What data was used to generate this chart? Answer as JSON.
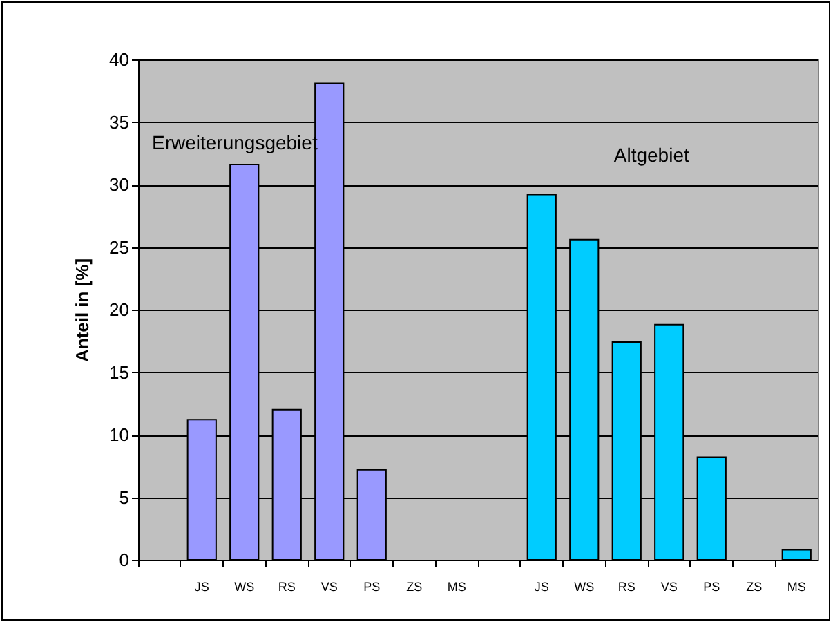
{
  "chart_data": {
    "type": "bar",
    "ylabel": "Anteil in [%]",
    "categories": [
      null,
      "JS",
      "WS",
      "RS",
      "VS",
      "PS",
      "ZS",
      "MS",
      null,
      "JS",
      "WS",
      "RS",
      "VS",
      "PS",
      "ZS",
      "MS"
    ],
    "values": [
      null,
      11.2,
      31.6,
      12.0,
      38.1,
      7.2,
      null,
      null,
      null,
      29.2,
      25.6,
      17.4,
      18.8,
      8.2,
      null,
      0.8
    ],
    "colors": [
      "#9999ff",
      "#9999ff",
      "#9999ff",
      "#9999ff",
      "#9999ff",
      "#9999ff",
      "#9999ff",
      "#9999ff",
      "#00ccff",
      "#00ccff",
      "#00ccff",
      "#00ccff",
      "#00ccff",
      "#00ccff",
      "#00ccff",
      "#00ccff"
    ],
    "ylim": [
      0,
      40
    ],
    "yticks": [
      0,
      5,
      10,
      15,
      20,
      25,
      30,
      35,
      40
    ],
    "grid": "y",
    "annotations": [
      "Erweiterungsgebiet",
      "Altgebiet"
    ]
  }
}
